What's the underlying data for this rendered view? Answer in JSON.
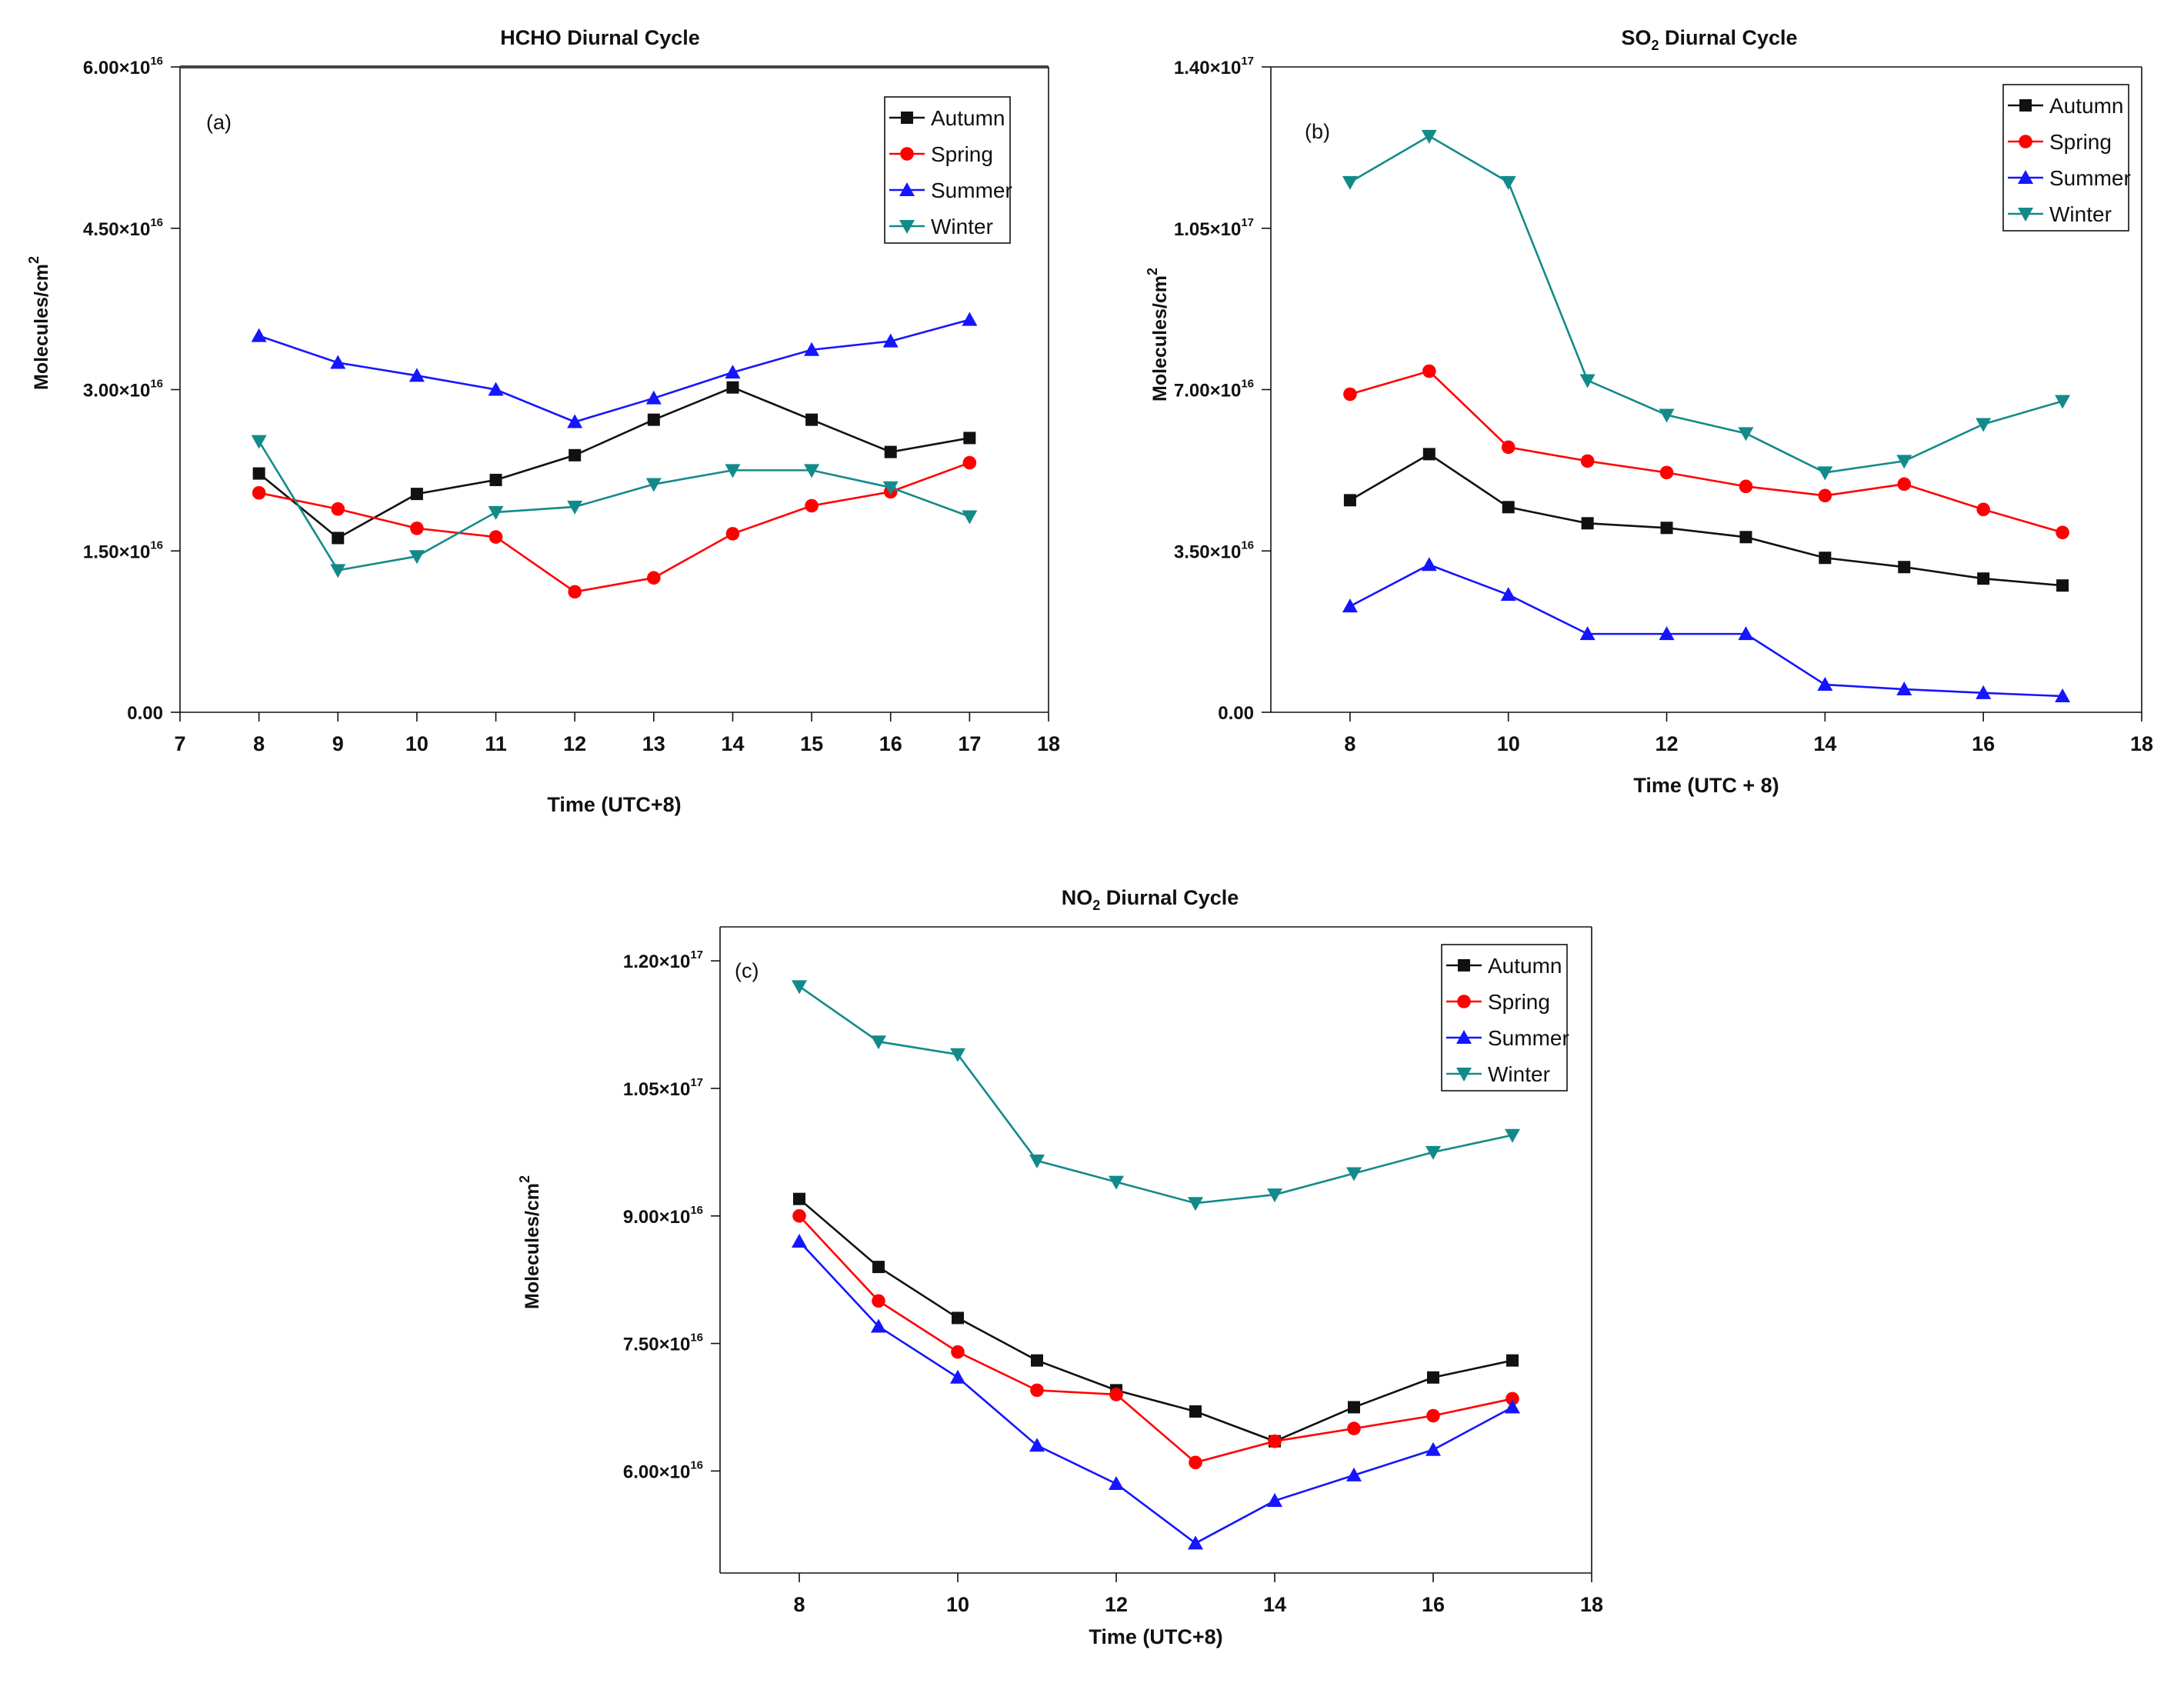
{
  "colors": {
    "Autumn": "#111111",
    "Spring": "#ff0000",
    "Summer": "#1515ff",
    "Winter": "#138a8a"
  },
  "chart_data": [
    {
      "id": "hcho",
      "type": "line",
      "panel_label": "(a)",
      "title_parts": [
        "HCHO Diurnal Cycle"
      ],
      "xlabel": "Time (UTC+8)",
      "ylabel": "Molecules/cm",
      "ylabel_sup": "2",
      "x": [
        8,
        9,
        10,
        11,
        12,
        13,
        14,
        15,
        16,
        17
      ],
      "xlim": [
        7,
        18
      ],
      "ylim": [
        0,
        6e+16
      ],
      "xticks": [
        {
          "v": 7,
          "label": "7"
        },
        {
          "v": 8,
          "label": "8"
        },
        {
          "v": 9,
          "label": "9"
        },
        {
          "v": 10,
          "label": "10"
        },
        {
          "v": 11,
          "label": "11"
        },
        {
          "v": 12,
          "label": "12"
        },
        {
          "v": 13,
          "label": "13"
        },
        {
          "v": 14,
          "label": "14"
        },
        {
          "v": 15,
          "label": "15"
        },
        {
          "v": 16,
          "label": "16"
        },
        {
          "v": 17,
          "label": "17"
        },
        {
          "v": 18,
          "label": "18"
        }
      ],
      "yticks": [
        {
          "v": 0,
          "base": "0.00",
          "exp": ""
        },
        {
          "v": 1.5e+16,
          "base": "1.50×10",
          "exp": "16"
        },
        {
          "v": 3e+16,
          "base": "3.00×10",
          "exp": "16"
        },
        {
          "v": 4.5e+16,
          "base": "4.50×10",
          "exp": "16"
        },
        {
          "v": 6e+16,
          "base": "6.00×10",
          "exp": "16"
        }
      ],
      "legend_position": "top-right",
      "series": [
        {
          "name": "Autumn",
          "marker": "square",
          "values": [
            2.22e+16,
            1.62e+16,
            2.03e+16,
            2.16e+16,
            2.39e+16,
            2.72e+16,
            3.02e+16,
            2.72e+16,
            2.42e+16,
            2.55e+16
          ]
        },
        {
          "name": "Spring",
          "marker": "circle",
          "values": [
            2.04e+16,
            1.89e+16,
            1.71e+16,
            1.63e+16,
            1.12e+16,
            1.25e+16,
            1.66e+16,
            1.92e+16,
            2.05e+16,
            2.32e+16
          ]
        },
        {
          "name": "Summer",
          "marker": "triangle-up",
          "values": [
            3.5e+16,
            3.25e+16,
            3.13e+16,
            3e+16,
            2.7e+16,
            2.92e+16,
            3.16e+16,
            3.37e+16,
            3.45e+16,
            3.65e+16
          ]
        },
        {
          "name": "Winter",
          "marker": "triangle-down",
          "values": [
            2.52e+16,
            1.32e+16,
            1.45e+16,
            1.86e+16,
            1.91e+16,
            2.12e+16,
            2.25e+16,
            2.25e+16,
            2.09e+16,
            1.82e+16
          ]
        }
      ]
    },
    {
      "id": "so2",
      "type": "line",
      "panel_label": "(b)",
      "title_parts": [
        "SO",
        "2",
        " Diurnal Cycle"
      ],
      "xlabel": "Time (UTC + 8)",
      "ylabel": "Molecules/cm",
      "ylabel_sup": "2",
      "x": [
        8,
        9,
        10,
        11,
        12,
        13,
        14,
        15,
        16,
        17
      ],
      "xlim": [
        7,
        18
      ],
      "ylim": [
        0,
        1.4e+17
      ],
      "xticks": [
        {
          "v": 8,
          "label": "8"
        },
        {
          "v": 10,
          "label": "10"
        },
        {
          "v": 12,
          "label": "12"
        },
        {
          "v": 14,
          "label": "14"
        },
        {
          "v": 16,
          "label": "16"
        },
        {
          "v": 18,
          "label": "18"
        }
      ],
      "yticks": [
        {
          "v": 0,
          "base": "0.00",
          "exp": ""
        },
        {
          "v": 3.5e+16,
          "base": "3.50×10",
          "exp": "16"
        },
        {
          "v": 7e+16,
          "base": "7.00×10",
          "exp": "16"
        },
        {
          "v": 1.05e+17,
          "base": "1.05×10",
          "exp": "17"
        },
        {
          "v": 1.4e+17,
          "base": "1.40×10",
          "exp": "17"
        }
      ],
      "legend_position": "top-right",
      "series": [
        {
          "name": "Autumn",
          "marker": "square",
          "values": [
            4.6e+16,
            5.6e+16,
            4.45e+16,
            4.1e+16,
            4e+16,
            3.8e+16,
            3.35e+16,
            3.15e+16,
            2.9e+16,
            2.75e+16
          ]
        },
        {
          "name": "Spring",
          "marker": "circle",
          "values": [
            6.9e+16,
            7.4e+16,
            5.75e+16,
            5.45e+16,
            5.2e+16,
            4.9e+16,
            4.7e+16,
            4.95e+16,
            4.4e+16,
            3.9e+16
          ]
        },
        {
          "name": "Summer",
          "marker": "triangle-up",
          "values": [
            2.3e+16,
            3.2e+16,
            2.55e+16,
            1.7e+16,
            1.7e+16,
            1.7e+16,
            6000000000000000.0,
            5000000000000000.0,
            4200000000000000.0,
            3500000000000000.0
          ]
        },
        {
          "name": "Winter",
          "marker": "triangle-down",
          "values": [
            1.15e+17,
            1.25e+17,
            1.15e+17,
            7.2e+16,
            6.45e+16,
            6.05e+16,
            5.2e+16,
            5.45e+16,
            6.25e+16,
            6.75e+16
          ]
        }
      ]
    },
    {
      "id": "no2",
      "type": "line",
      "panel_label": "(c)",
      "title_parts": [
        "NO",
        "2",
        " Diurnal Cycle"
      ],
      "xlabel": "Time (UTC+8)",
      "ylabel": "Molecules/cm",
      "ylabel_sup": "2",
      "x": [
        8,
        9,
        10,
        11,
        12,
        13,
        14,
        15,
        16,
        17
      ],
      "xlim": [
        7,
        18
      ],
      "ylim": [
        4.8e+16,
        1.24e+17
      ],
      "xticks": [
        {
          "v": 8,
          "label": "8"
        },
        {
          "v": 10,
          "label": "10"
        },
        {
          "v": 12,
          "label": "12"
        },
        {
          "v": 14,
          "label": "14"
        },
        {
          "v": 16,
          "label": "16"
        },
        {
          "v": 18,
          "label": "18"
        }
      ],
      "yticks": [
        {
          "v": 6e+16,
          "base": "6.00×10",
          "exp": "16"
        },
        {
          "v": 7.5e+16,
          "base": "7.50×10",
          "exp": "16"
        },
        {
          "v": 9e+16,
          "base": "9.00×10",
          "exp": "16"
        },
        {
          "v": 1.05e+17,
          "base": "1.05×10",
          "exp": "17"
        },
        {
          "v": 1.2e+17,
          "base": "1.20×10",
          "exp": "17"
        }
      ],
      "legend_position": "top-right",
      "series": [
        {
          "name": "Autumn",
          "marker": "square",
          "values": [
            9.2e+16,
            8.4e+16,
            7.8e+16,
            7.3e+16,
            6.95e+16,
            6.7e+16,
            6.35e+16,
            6.75e+16,
            7.1e+16,
            7.3e+16
          ]
        },
        {
          "name": "Spring",
          "marker": "circle",
          "values": [
            9e+16,
            8e+16,
            7.4e+16,
            6.95e+16,
            6.9e+16,
            6.1e+16,
            6.35e+16,
            6.5e+16,
            6.65e+16,
            6.85e+16
          ]
        },
        {
          "name": "Summer",
          "marker": "triangle-up",
          "values": [
            8.7e+16,
            7.7e+16,
            7.1e+16,
            6.3e+16,
            5.85e+16,
            5.15e+16,
            5.65e+16,
            5.95e+16,
            6.25e+16,
            6.75e+16
          ]
        },
        {
          "name": "Winter",
          "marker": "triangle-down",
          "values": [
            1.17e+17,
            1.105e+17,
            1.09e+17,
            9.65e+16,
            9.4e+16,
            9.15e+16,
            9.25e+16,
            9.5e+16,
            9.75e+16,
            9.95e+16
          ]
        }
      ]
    }
  ]
}
